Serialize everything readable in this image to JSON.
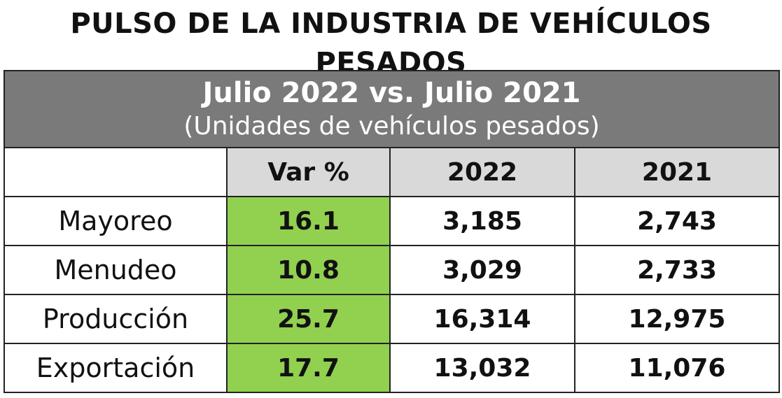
{
  "title": "PULSO DE LA INDUSTRIA DE VEHÍCULOS PESADOS",
  "table": {
    "header_line1": "Julio 2022 vs. Julio 2021",
    "header_line2": "(Unidades de vehículos pesados)",
    "columns": [
      "",
      "Var %",
      "2022",
      "2021"
    ],
    "rows": [
      {
        "label": "Mayoreo",
        "var": "16.1",
        "y2022": "3,185",
        "y2021": "2,743"
      },
      {
        "label": "Menudeo",
        "var": "10.8",
        "y2022": "3,029",
        "y2021": "2,733"
      },
      {
        "label": "Producción",
        "var": "25.7",
        "y2022": "16,314",
        "y2021": "12,975"
      },
      {
        "label": "Exportación",
        "var": "17.7",
        "y2022": "13,032",
        "y2021": "11,076"
      }
    ]
  },
  "colors": {
    "header_bg": "#7a7a7a",
    "column_header_bg": "#d9d9d9",
    "var_highlight": "#92d050"
  }
}
